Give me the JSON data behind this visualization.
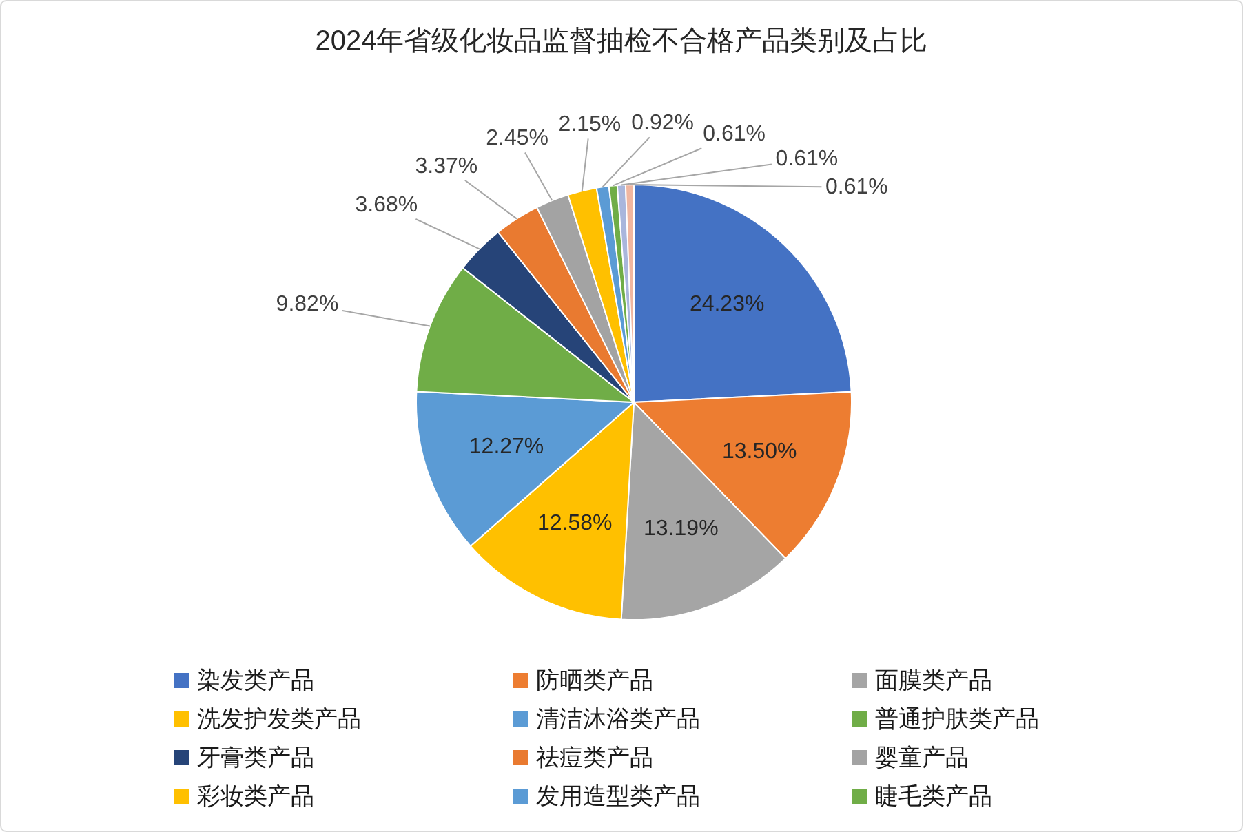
{
  "chart_data": {
    "type": "pie",
    "title": "2024年省级化妆品监督抽检不合格产品类别及占比",
    "categories": [
      "染发类产品",
      "防晒类产品",
      "面膜类产品",
      "洗发护发类产品",
      "清洁沐浴类产品",
      "普通护肤类产品",
      "牙膏类产品",
      "祛痘类产品",
      "婴童产品",
      "彩妆类产品",
      "发用造型类产品",
      "睫毛类产品",
      null,
      null
    ],
    "values": [
      24.23,
      13.5,
      13.19,
      12.58,
      12.27,
      9.82,
      3.68,
      3.37,
      2.45,
      2.15,
      0.92,
      0.61,
      0.61,
      0.61
    ],
    "value_labels": [
      "24.23%",
      "13.50%",
      "13.19%",
      "12.58%",
      "12.27%",
      "9.82%",
      "3.68%",
      "3.37%",
      "2.45%",
      "2.15%",
      "0.92%",
      "0.61%",
      "0.61%",
      "0.61%"
    ],
    "colors": [
      "#4472c4",
      "#ed7d31",
      "#a5a5a5",
      "#ffc000",
      "#5b9bd5",
      "#70ad47",
      "#264478",
      "#e97a30",
      "#a3a3a3",
      "#ffc000",
      "#5b9bd5",
      "#70ad47",
      "#a9b6dc",
      "#f0b6a0"
    ],
    "legend": "bottom"
  }
}
